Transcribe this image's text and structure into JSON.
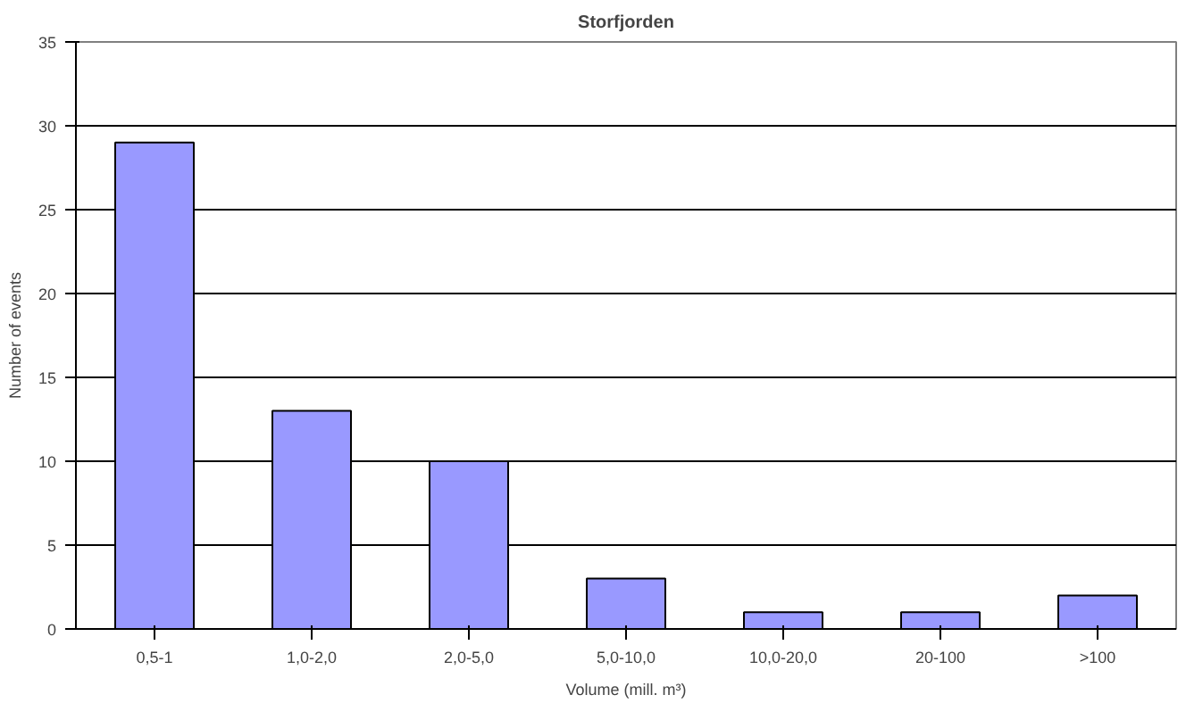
{
  "chart_data": {
    "type": "bar",
    "title": "Storfjorden",
    "xlabel": "Volume (mill. m³)",
    "ylabel": "Number of events",
    "categories": [
      "0,5-1",
      "1,0-2,0",
      "2,0-5,0",
      "5,0-10,0",
      "10,0-20,0",
      "20-100",
      ">100"
    ],
    "values": [
      29,
      13,
      10,
      3,
      1,
      1,
      2
    ],
    "color": "#9999ff",
    "ylim": [
      0,
      35
    ],
    "yticks": [
      0,
      5,
      10,
      15,
      20,
      25,
      30,
      35
    ],
    "grid": "y"
  }
}
